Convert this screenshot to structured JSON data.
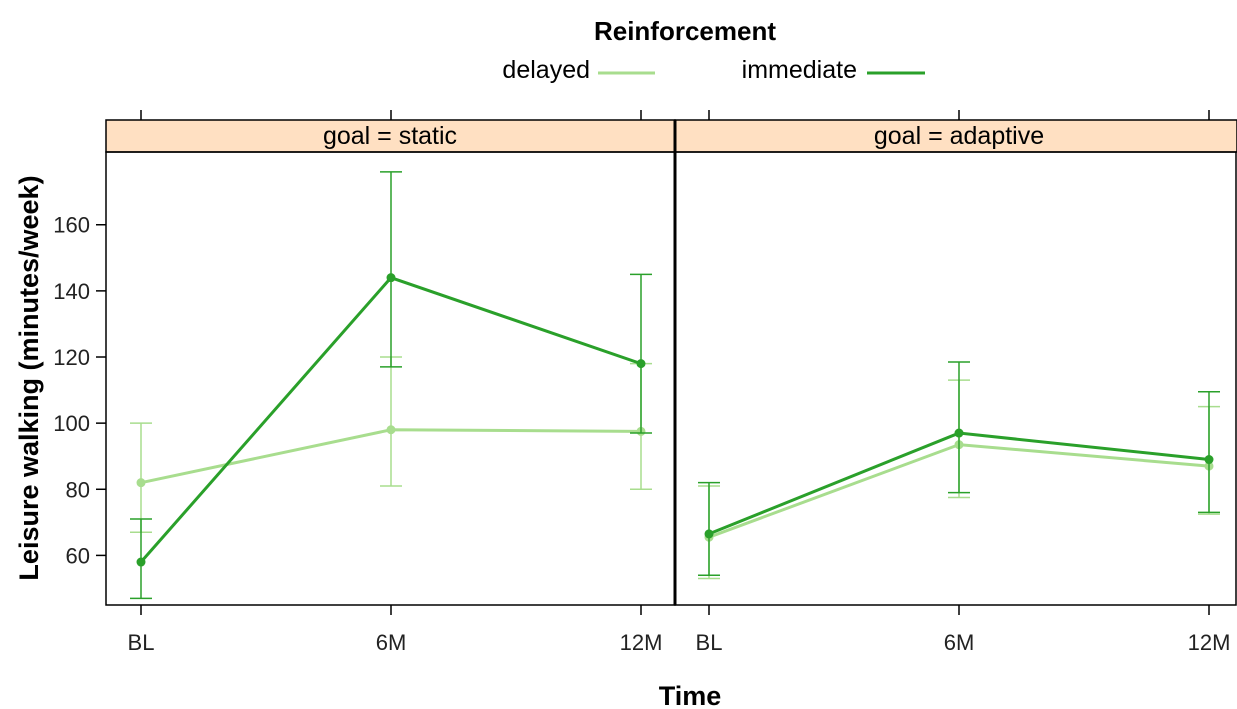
{
  "chart_data": {
    "type": "line",
    "legend": {
      "title": "Reinforcement",
      "position": "top",
      "entries": [
        {
          "label": "delayed",
          "color": "#a8dd8e"
        },
        {
          "label": "immediate",
          "color": "#2aa02a"
        }
      ]
    },
    "xlabel": "Time",
    "ylabel": "Leisure walking (minutes/week)",
    "categories": [
      "BL",
      "6M",
      "12M"
    ],
    "yticks": [
      60,
      80,
      100,
      120,
      140,
      160
    ],
    "ylim": [
      45,
      182
    ],
    "grid": false,
    "panels": [
      {
        "strip": "goal = static",
        "series": [
          {
            "name": "delayed",
            "values": [
              82,
              98,
              97.5
            ],
            "lower": [
              67,
              81,
              80
            ],
            "upper": [
              100,
              120,
              118
            ]
          },
          {
            "name": "immediate",
            "values": [
              58,
              144,
              118
            ],
            "lower": [
              47,
              117,
              97
            ],
            "upper": [
              71,
              176,
              145
            ]
          }
        ]
      },
      {
        "strip": "goal = adaptive",
        "series": [
          {
            "name": "delayed",
            "values": [
              65.5,
              93.5,
              87
            ],
            "lower": [
              53,
              77.5,
              72.5
            ],
            "upper": [
              81,
              113,
              105
            ]
          },
          {
            "name": "immediate",
            "values": [
              66.5,
              97,
              89
            ],
            "lower": [
              54,
              79,
              73
            ],
            "upper": [
              82,
              118.5,
              109.5
            ]
          }
        ]
      }
    ],
    "colors": {
      "delayed": "#a8dd8e",
      "immediate": "#2aa02a",
      "strip": "#ffe0c2"
    }
  }
}
